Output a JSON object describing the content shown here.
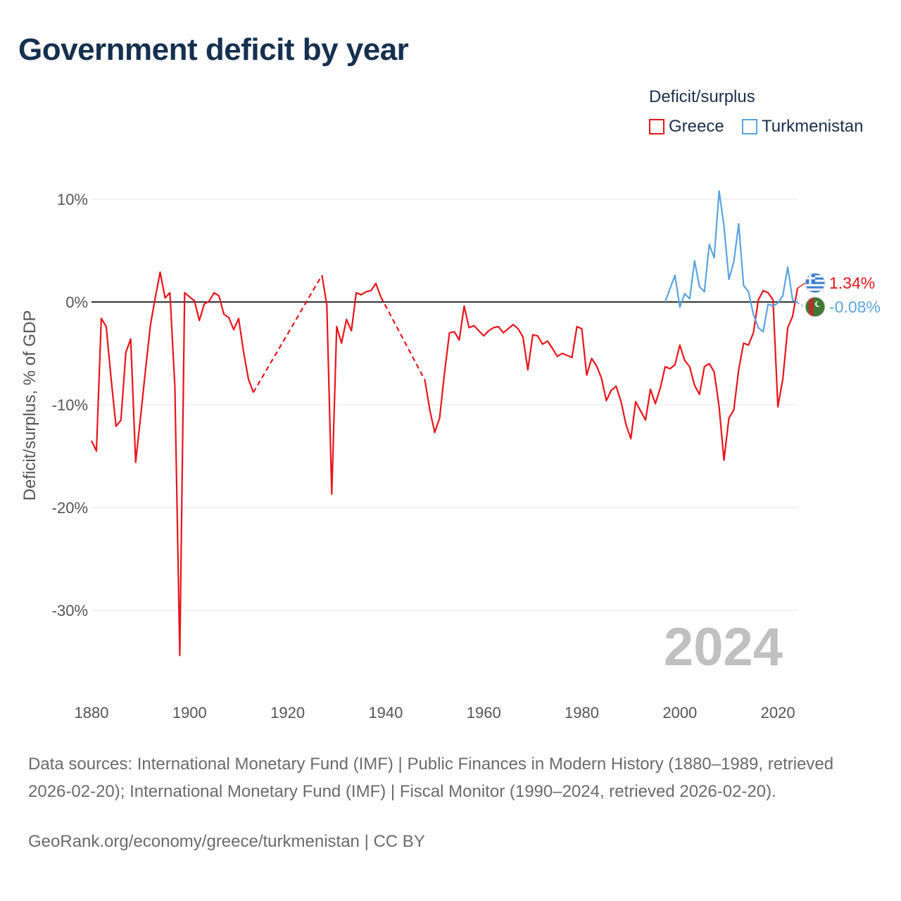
{
  "title": "Government deficit by year",
  "legend": {
    "title": "Deficit/surplus",
    "items": [
      {
        "label": "Greece",
        "color": "#e8141b"
      },
      {
        "label": "Turkmenistan",
        "color": "#5aa4e0"
      }
    ]
  },
  "sources_text": "Data sources: International Monetary Fund (IMF) | Public Finances in Modern History (1880–1989, retrieved 2026-02-20); International Monetary Fund (IMF) | Fiscal Monitor (1990–2024, retrieved 2026-02-20).",
  "credit_text": "GeoRank.org/economy/greece/turkmenistan | CC BY",
  "chart_data": {
    "type": "line",
    "title": "Government deficit by year",
    "xlabel": "",
    "ylabel": "Deficit/surplus, % of GDP",
    "xlim": [
      1880,
      2024
    ],
    "ylim": [
      -38,
      11
    ],
    "x_ticks": [
      "1880",
      "1900",
      "1920",
      "1940",
      "1960",
      "1980",
      "2000",
      "2020"
    ],
    "y_ticks": [
      {
        "value": 10,
        "label": "10%"
      },
      {
        "value": 0,
        "label": "0%"
      },
      {
        "value": -10,
        "label": "-10%"
      },
      {
        "value": -20,
        "label": "-20%"
      },
      {
        "value": -30,
        "label": "-30%"
      }
    ],
    "current_year_label": "2024",
    "series": [
      {
        "name": "Greece",
        "color": "#e8141b",
        "end_label": "1.34%",
        "segments": [
          {
            "dashed": false,
            "points": [
              [
                1880,
                -13.5
              ],
              [
                1881,
                -14.5
              ],
              [
                1882,
                -1.6
              ],
              [
                1883,
                -2.4
              ],
              [
                1884,
                -7.5
              ],
              [
                1885,
                -12.1
              ],
              [
                1886,
                -11.5
              ],
              [
                1887,
                -4.9
              ],
              [
                1888,
                -3.6
              ],
              [
                1889,
                -15.6
              ],
              [
                1890,
                -11.2
              ],
              [
                1891,
                -6.7
              ],
              [
                1892,
                -2.3
              ],
              [
                1893,
                0.4
              ],
              [
                1894,
                2.9
              ],
              [
                1895,
                0.4
              ],
              [
                1896,
                0.9
              ],
              [
                1897,
                -8.2
              ],
              [
                1898,
                -34.4
              ],
              [
                1899,
                0.9
              ],
              [
                1900,
                0.5
              ],
              [
                1901,
                0.1
              ],
              [
                1902,
                -1.8
              ],
              [
                1903,
                -0.2
              ],
              [
                1904,
                0.1
              ],
              [
                1905,
                0.9
              ],
              [
                1906,
                0.6
              ],
              [
                1907,
                -1.2
              ],
              [
                1908,
                -1.5
              ],
              [
                1909,
                -2.7
              ],
              [
                1910,
                -1.6
              ],
              [
                1911,
                -4.8
              ],
              [
                1912,
                -7.5
              ],
              [
                1913,
                -8.8
              ]
            ]
          },
          {
            "dashed": true,
            "points": [
              [
                1913,
                -8.8
              ],
              [
                1927,
                2.6
              ]
            ]
          },
          {
            "dashed": false,
            "points": [
              [
                1927,
                2.6
              ],
              [
                1928,
                -0.3
              ],
              [
                1929,
                -18.7
              ],
              [
                1930,
                -2.4
              ],
              [
                1931,
                -4
              ],
              [
                1932,
                -1.7
              ],
              [
                1933,
                -2.8
              ],
              [
                1934,
                0.9
              ],
              [
                1935,
                0.7
              ],
              [
                1936,
                1.0
              ],
              [
                1937,
                1.1
              ],
              [
                1938,
                1.8
              ],
              [
                1939,
                0.5
              ]
            ]
          },
          {
            "dashed": true,
            "points": [
              [
                1939,
                0.5
              ],
              [
                1948,
                -7.6
              ]
            ]
          },
          {
            "dashed": false,
            "points": [
              [
                1948,
                -7.6
              ],
              [
                1949,
                -10.5
              ],
              [
                1950,
                -12.7
              ],
              [
                1951,
                -11.3
              ],
              [
                1952,
                -6.9
              ],
              [
                1953,
                -3
              ],
              [
                1954,
                -2.9
              ],
              [
                1955,
                -3.7
              ],
              [
                1956,
                -0.4
              ],
              [
                1957,
                -2.5
              ],
              [
                1958,
                -2.3
              ],
              [
                1959,
                -2.8
              ],
              [
                1960,
                -3.3
              ],
              [
                1961,
                -2.8
              ],
              [
                1962,
                -2.5
              ],
              [
                1963,
                -2.4
              ],
              [
                1964,
                -3.0
              ],
              [
                1965,
                -2.6
              ],
              [
                1966,
                -2.2
              ],
              [
                1967,
                -2.6
              ],
              [
                1968,
                -3.4
              ],
              [
                1969,
                -6.6
              ],
              [
                1970,
                -3.2
              ],
              [
                1971,
                -3.3
              ],
              [
                1972,
                -4.1
              ],
              [
                1973,
                -3.8
              ],
              [
                1974,
                -4.5
              ],
              [
                1975,
                -5.3
              ],
              [
                1976,
                -5.0
              ],
              [
                1977,
                -5.2
              ],
              [
                1978,
                -5.4
              ],
              [
                1979,
                -2.4
              ],
              [
                1980,
                -2.6
              ],
              [
                1981,
                -7.1
              ],
              [
                1982,
                -5.5
              ],
              [
                1983,
                -6.2
              ],
              [
                1984,
                -7.4
              ],
              [
                1985,
                -9.6
              ],
              [
                1986,
                -8.6
              ],
              [
                1987,
                -8.2
              ],
              [
                1988,
                -9.7
              ],
              [
                1989,
                -11.9
              ],
              [
                1990,
                -13.3
              ],
              [
                1991,
                -9.7
              ],
              [
                1992,
                -10.6
              ],
              [
                1993,
                -11.5
              ],
              [
                1994,
                -8.5
              ],
              [
                1995,
                -9.9
              ],
              [
                1996,
                -8.4
              ],
              [
                1997,
                -6.3
              ],
              [
                1998,
                -6.5
              ],
              [
                1999,
                -6.1
              ],
              [
                2000,
                -4.2
              ],
              [
                2001,
                -5.7
              ],
              [
                2002,
                -6.3
              ],
              [
                2003,
                -8.1
              ],
              [
                2004,
                -9.0
              ],
              [
                2005,
                -6.3
              ],
              [
                2006,
                -6.0
              ],
              [
                2007,
                -6.8
              ],
              [
                2008,
                -10.2
              ],
              [
                2009,
                -15.4
              ],
              [
                2010,
                -11.3
              ],
              [
                2011,
                -10.5
              ],
              [
                2012,
                -6.6
              ],
              [
                2013,
                -4.0
              ],
              [
                2014,
                -4.2
              ],
              [
                2015,
                -3.0
              ],
              [
                2016,
                0.2
              ],
              [
                2017,
                1.1
              ],
              [
                2018,
                0.9
              ],
              [
                2019,
                0.2
              ],
              [
                2020,
                -10.2
              ],
              [
                2021,
                -7.5
              ],
              [
                2022,
                -2.5
              ],
              [
                2023,
                -1.4
              ],
              [
                2024,
                1.34
              ]
            ]
          }
        ]
      },
      {
        "name": "Turkmenistan",
        "color": "#5aa4e0",
        "end_label": "-0.08%",
        "segments": [
          {
            "dashed": false,
            "points": [
              [
                1997,
                0
              ],
              [
                1998,
                1.3
              ],
              [
                1999,
                2.6
              ],
              [
                2000,
                -0.5
              ],
              [
                2001,
                0.8
              ],
              [
                2002,
                0.3
              ],
              [
                2003,
                4.0
              ],
              [
                2004,
                1.5
              ],
              [
                2005,
                1.0
              ],
              [
                2006,
                5.6
              ],
              [
                2007,
                4.3
              ],
              [
                2008,
                10.8
              ],
              [
                2009,
                7.4
              ],
              [
                2010,
                2.2
              ],
              [
                2011,
                3.9
              ],
              [
                2012,
                7.6
              ],
              [
                2013,
                1.6
              ],
              [
                2014,
                1.0
              ],
              [
                2015,
                -1.2
              ],
              [
                2016,
                -2.5
              ],
              [
                2017,
                -2.9
              ],
              [
                2018,
                -0.2
              ],
              [
                2019,
                -0.4
              ],
              [
                2020,
                -0.1
              ],
              [
                2021,
                0.6
              ],
              [
                2022,
                3.4
              ],
              [
                2023,
                0.2
              ],
              [
                2024,
                -0.08
              ]
            ]
          }
        ]
      }
    ]
  }
}
